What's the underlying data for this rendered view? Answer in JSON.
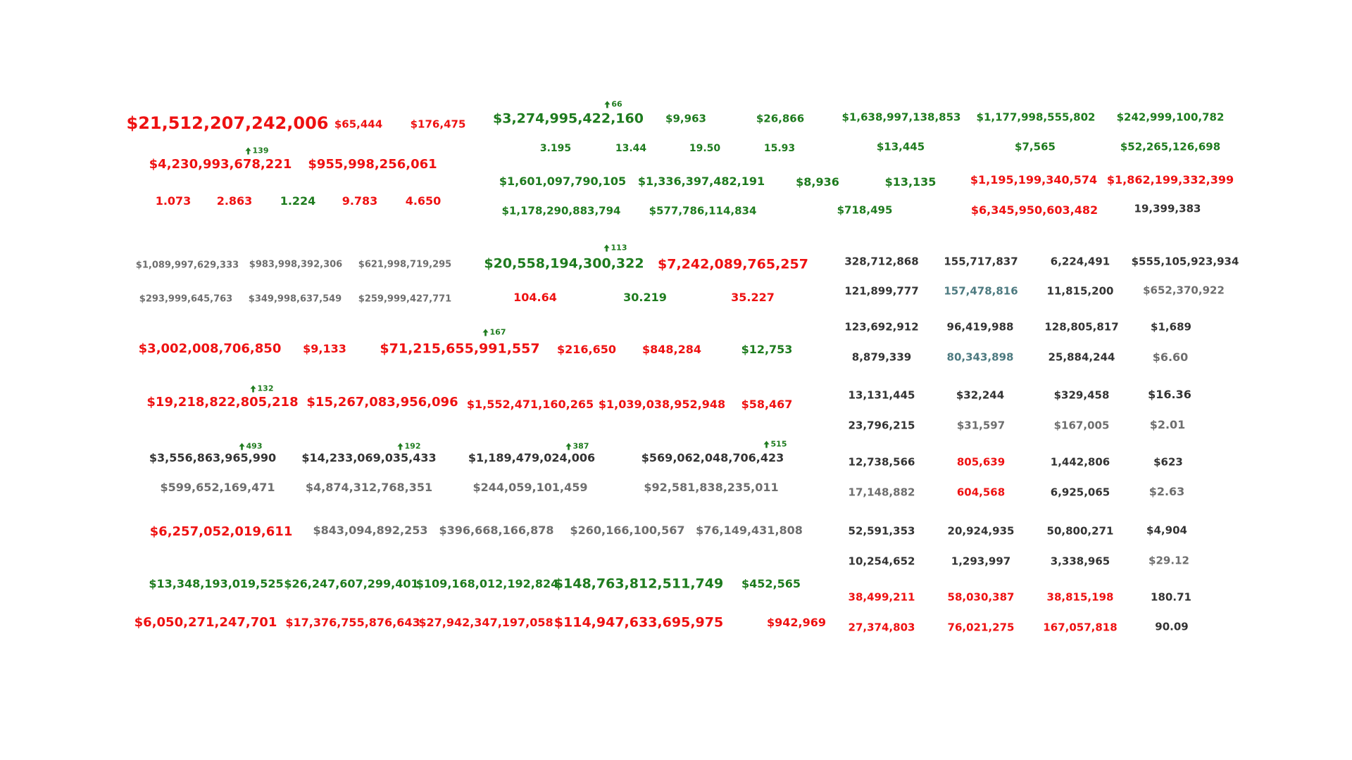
{
  "colors": {
    "red": "#ee1111",
    "green": "#1e7b1e",
    "dark": "#333333",
    "gray": "#6e6e6e",
    "slate": "#4d7a80"
  },
  "icons": {
    "change_indicator": "up-arrow-icon"
  },
  "values": [
    {
      "text": "$21,512,207,242,006",
      "color": "red"
    },
    {
      "text": "$65,444",
      "color": "red"
    },
    {
      "text": "$176,475",
      "color": "red"
    },
    {
      "text": "$4,230,993,678,221",
      "color": "red"
    },
    {
      "text": "$955,998,256,061",
      "color": "red"
    },
    {
      "text": "1.073",
      "color": "red"
    },
    {
      "text": "2.863",
      "color": "red"
    },
    {
      "text": "1.224",
      "color": "green"
    },
    {
      "text": "9.783",
      "color": "red"
    },
    {
      "text": "4.650",
      "color": "red"
    },
    {
      "text": "$3,274,995,422,160",
      "color": "green"
    },
    {
      "text": "$9,963",
      "color": "green"
    },
    {
      "text": "$26,866",
      "color": "green"
    },
    {
      "text": "3.195",
      "color": "green"
    },
    {
      "text": "13.44",
      "color": "green"
    },
    {
      "text": "19.50",
      "color": "green"
    },
    {
      "text": "15.93",
      "color": "green"
    },
    {
      "text": "$1,638,997,138,853",
      "color": "green"
    },
    {
      "text": "$1,177,998,555,802",
      "color": "green"
    },
    {
      "text": "$242,999,100,782",
      "color": "green"
    },
    {
      "text": "$13,445",
      "color": "green"
    },
    {
      "text": "$7,565",
      "color": "green"
    },
    {
      "text": "$52,265,126,698",
      "color": "green"
    },
    {
      "text": "$1,601,097,790,105",
      "color": "green"
    },
    {
      "text": "$1,336,397,482,191",
      "color": "green"
    },
    {
      "text": "$8,936",
      "color": "green"
    },
    {
      "text": "$13,135",
      "color": "green"
    },
    {
      "text": "$1,195,199,340,574",
      "color": "red"
    },
    {
      "text": "$1,862,199,332,399",
      "color": "red"
    },
    {
      "text": "$1,178,290,883,794",
      "color": "green"
    },
    {
      "text": "$577,786,114,834",
      "color": "green"
    },
    {
      "text": "$718,495",
      "color": "green"
    },
    {
      "text": "$6,345,950,603,482",
      "color": "red"
    },
    {
      "text": "19,399,383",
      "color": "dark"
    },
    {
      "text": "$1,089,997,629,333",
      "color": "gray"
    },
    {
      "text": "$983,998,392,306",
      "color": "gray"
    },
    {
      "text": "$621,998,719,295",
      "color": "gray"
    },
    {
      "text": "$293,999,645,763",
      "color": "gray"
    },
    {
      "text": "$349,998,637,549",
      "color": "gray"
    },
    {
      "text": "$259,999,427,771",
      "color": "gray"
    },
    {
      "text": "$20,558,194,300,322",
      "color": "green"
    },
    {
      "text": "$7,242,089,765,257",
      "color": "red"
    },
    {
      "text": "104.64",
      "color": "red"
    },
    {
      "text": "30.219",
      "color": "green"
    },
    {
      "text": "35.227",
      "color": "red"
    },
    {
      "text": "$3,002,008,706,850",
      "color": "red"
    },
    {
      "text": "$9,133",
      "color": "red"
    },
    {
      "text": "$71,215,655,991,557",
      "color": "red"
    },
    {
      "text": "$216,650",
      "color": "red"
    },
    {
      "text": "$848,284",
      "color": "red"
    },
    {
      "text": "$12,753",
      "color": "green"
    },
    {
      "text": "$19,218,822,805,218",
      "color": "red"
    },
    {
      "text": "$15,267,083,956,096",
      "color": "red"
    },
    {
      "text": "$1,552,471,160,265",
      "color": "red"
    },
    {
      "text": "$1,039,038,952,948",
      "color": "red"
    },
    {
      "text": "$58,467",
      "color": "red"
    },
    {
      "text": "$3,556,863,965,990",
      "color": "dark"
    },
    {
      "text": "$14,233,069,035,433",
      "color": "dark"
    },
    {
      "text": "$1,189,479,024,006",
      "color": "dark"
    },
    {
      "text": "$569,062,048,706,423",
      "color": "dark"
    },
    {
      "text": "$599,652,169,471",
      "color": "gray"
    },
    {
      "text": "$4,874,312,768,351",
      "color": "gray"
    },
    {
      "text": "$244,059,101,459",
      "color": "gray"
    },
    {
      "text": "$92,581,838,235,011",
      "color": "gray"
    },
    {
      "text": "$6,257,052,019,611",
      "color": "red"
    },
    {
      "text": "$843,094,892,253",
      "color": "gray"
    },
    {
      "text": "$396,668,166,878",
      "color": "gray"
    },
    {
      "text": "$260,166,100,567",
      "color": "gray"
    },
    {
      "text": "$76,149,431,808",
      "color": "gray"
    },
    {
      "text": "$13,348,193,019,525",
      "color": "green"
    },
    {
      "text": "$26,247,607,299,401",
      "color": "green"
    },
    {
      "text": "$109,168,012,192,824",
      "color": "green"
    },
    {
      "text": "$148,763,812,511,749",
      "color": "green"
    },
    {
      "text": "$452,565",
      "color": "green"
    },
    {
      "text": "$6,050,271,247,701",
      "color": "red"
    },
    {
      "text": "$17,376,755,876,643",
      "color": "red"
    },
    {
      "text": "$27,942,347,197,058",
      "color": "red"
    },
    {
      "text": "$114,947,633,695,975",
      "color": "red"
    },
    {
      "text": "$942,969",
      "color": "red"
    },
    {
      "text": "328,712,868",
      "color": "dark"
    },
    {
      "text": "155,717,837",
      "color": "dark"
    },
    {
      "text": "6,224,491",
      "color": "dark"
    },
    {
      "text": "$555,105,923,934",
      "color": "dark"
    },
    {
      "text": "121,899,777",
      "color": "dark"
    },
    {
      "text": "157,478,816",
      "color": "slate"
    },
    {
      "text": "11,815,200",
      "color": "dark"
    },
    {
      "text": "$652,370,922",
      "color": "gray"
    },
    {
      "text": "123,692,912",
      "color": "dark"
    },
    {
      "text": "96,419,988",
      "color": "dark"
    },
    {
      "text": "128,805,817",
      "color": "dark"
    },
    {
      "text": "$1,689",
      "color": "dark"
    },
    {
      "text": "8,879,339",
      "color": "dark"
    },
    {
      "text": "80,343,898",
      "color": "slate"
    },
    {
      "text": "25,884,244",
      "color": "dark"
    },
    {
      "text": "$6.60",
      "color": "gray"
    },
    {
      "text": "13,131,445",
      "color": "dark"
    },
    {
      "text": "$32,244",
      "color": "dark"
    },
    {
      "text": "$329,458",
      "color": "dark"
    },
    {
      "text": "$16.36",
      "color": "dark"
    },
    {
      "text": "23,796,215",
      "color": "dark"
    },
    {
      "text": "$31,597",
      "color": "gray"
    },
    {
      "text": "$167,005",
      "color": "gray"
    },
    {
      "text": "$2.01",
      "color": "gray"
    },
    {
      "text": "12,738,566",
      "color": "dark"
    },
    {
      "text": "805,639",
      "color": "red"
    },
    {
      "text": "1,442,806",
      "color": "dark"
    },
    {
      "text": "$623",
      "color": "dark"
    },
    {
      "text": "17,148,882",
      "color": "gray"
    },
    {
      "text": "604,568",
      "color": "red"
    },
    {
      "text": "6,925,065",
      "color": "dark"
    },
    {
      "text": "$2.63",
      "color": "gray"
    },
    {
      "text": "52,591,353",
      "color": "dark"
    },
    {
      "text": "20,924,935",
      "color": "dark"
    },
    {
      "text": "50,800,271",
      "color": "dark"
    },
    {
      "text": "$4,904",
      "color": "dark"
    },
    {
      "text": "10,254,652",
      "color": "dark"
    },
    {
      "text": "1,293,997",
      "color": "dark"
    },
    {
      "text": "3,338,965",
      "color": "dark"
    },
    {
      "text": "$29.12",
      "color": "gray"
    },
    {
      "text": "38,499,211",
      "color": "red"
    },
    {
      "text": "58,030,387",
      "color": "red"
    },
    {
      "text": "38,815,198",
      "color": "red"
    },
    {
      "text": "180.71",
      "color": "dark"
    },
    {
      "text": "27,374,803",
      "color": "red"
    },
    {
      "text": "76,021,275",
      "color": "red"
    },
    {
      "text": "167,057,818",
      "color": "red"
    },
    {
      "text": "90.09",
      "color": "dark"
    }
  ],
  "changes": [
    {
      "text": "66"
    },
    {
      "text": "139"
    },
    {
      "text": "113"
    },
    {
      "text": "167"
    },
    {
      "text": "132"
    },
    {
      "text": "493"
    },
    {
      "text": "192"
    },
    {
      "text": "387"
    },
    {
      "text": "515"
    }
  ]
}
